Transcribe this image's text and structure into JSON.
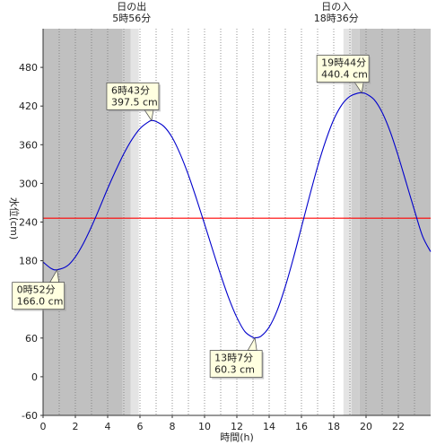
{
  "chart_data": {
    "type": "line",
    "xlabel": "時間(h)",
    "ylabel": "水位(cm)",
    "xlim": [
      0,
      24
    ],
    "ylim": [
      -60,
      540
    ],
    "x_ticks": [
      0,
      2,
      4,
      6,
      8,
      10,
      12,
      14,
      16,
      18,
      20,
      22
    ],
    "y_ticks": [
      -60,
      0,
      60,
      120,
      180,
      240,
      300,
      360,
      420,
      480
    ],
    "grid": "vertical dotted every 1h",
    "reference_line": {
      "y": 246,
      "color": "#ff0000"
    },
    "series": [
      {
        "color": "#0000cc",
        "points": [
          [
            0.0,
            178
          ],
          [
            0.5,
            168
          ],
          [
            0.87,
            166.0
          ],
          [
            1.5,
            172
          ],
          [
            2.0,
            186
          ],
          [
            2.5,
            207
          ],
          [
            3.0,
            233
          ],
          [
            3.5,
            262
          ],
          [
            4.0,
            292
          ],
          [
            4.5,
            320
          ],
          [
            5.0,
            346
          ],
          [
            5.5,
            368
          ],
          [
            6.0,
            385
          ],
          [
            6.5,
            395
          ],
          [
            6.72,
            397.5
          ],
          [
            7.0,
            396
          ],
          [
            7.5,
            388
          ],
          [
            8.0,
            371
          ],
          [
            8.5,
            345
          ],
          [
            9.0,
            313
          ],
          [
            9.5,
            276
          ],
          [
            10.0,
            237
          ],
          [
            10.5,
            197
          ],
          [
            11.0,
            158
          ],
          [
            11.5,
            122
          ],
          [
            12.0,
            92
          ],
          [
            12.5,
            70
          ],
          [
            13.0,
            61
          ],
          [
            13.12,
            60.3
          ],
          [
            13.5,
            63
          ],
          [
            14.0,
            77
          ],
          [
            14.5,
            103
          ],
          [
            15.0,
            140
          ],
          [
            15.5,
            184
          ],
          [
            16.0,
            232
          ],
          [
            16.5,
            280
          ],
          [
            17.0,
            326
          ],
          [
            17.5,
            366
          ],
          [
            18.0,
            399
          ],
          [
            18.5,
            422
          ],
          [
            19.0,
            435
          ],
          [
            19.5,
            440
          ],
          [
            19.73,
            440.4
          ],
          [
            20.0,
            439
          ],
          [
            20.5,
            430
          ],
          [
            21.0,
            410
          ],
          [
            21.5,
            380
          ],
          [
            22.0,
            342
          ],
          [
            22.5,
            300
          ],
          [
            23.0,
            258
          ],
          [
            23.5,
            218
          ],
          [
            24.0,
            194
          ]
        ]
      }
    ],
    "background_bands": [
      {
        "from": 0,
        "to": 4.93,
        "shade": "night",
        "color": "#c0c0c0"
      },
      {
        "from": 4.93,
        "to": 5.43,
        "shade": "twilight-dark",
        "color": "#cfcfcf"
      },
      {
        "from": 5.43,
        "to": 5.93,
        "shade": "twilight-light",
        "color": "#e4e4e4"
      },
      {
        "from": 5.93,
        "to": 18.6,
        "shade": "day",
        "color": "#ffffff"
      },
      {
        "from": 18.6,
        "to": 19.1,
        "shade": "twilight-light",
        "color": "#e4e4e4"
      },
      {
        "from": 19.1,
        "to": 19.6,
        "shade": "twilight-dark",
        "color": "#cfcfcf"
      },
      {
        "from": 19.6,
        "to": 24,
        "shade": "night",
        "color": "#c0c0c0"
      }
    ],
    "sun_labels": {
      "sunrise": {
        "title": "日の出",
        "time": "5時56分",
        "x": 5.93
      },
      "sunset": {
        "title": "日の入",
        "time": "18時36分",
        "x": 18.6
      }
    },
    "annotations": [
      {
        "x": 0.87,
        "y": 166.0,
        "line1": "0時52分",
        "line2": "166.0 cm",
        "placement": "below-left"
      },
      {
        "x": 6.72,
        "y": 397.5,
        "line1": "6時43分",
        "line2": "397.5 cm",
        "placement": "above-left"
      },
      {
        "x": 13.12,
        "y": 60.3,
        "line1": "13時7分",
        "line2": "60.3 cm",
        "placement": "below-left"
      },
      {
        "x": 19.73,
        "y": 440.4,
        "line1": "19時44分",
        "line2": "440.4 cm",
        "placement": "above-left"
      }
    ],
    "colors": {
      "callout_fill": "#ffffe0",
      "callout_border": "#555555"
    }
  }
}
